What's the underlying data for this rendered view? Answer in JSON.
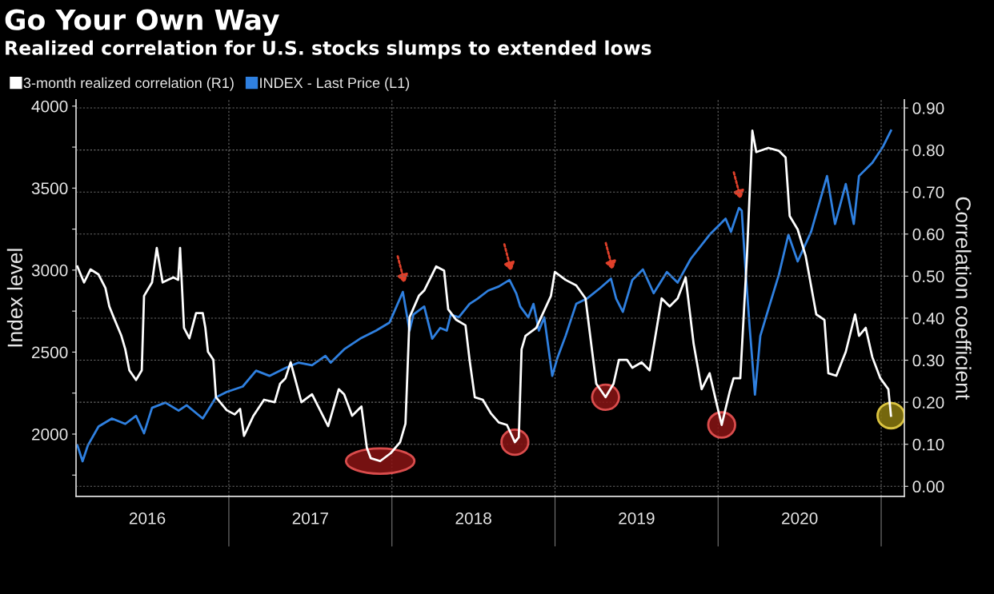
{
  "chart_data": {
    "type": "line",
    "title": "Go Your Own Way",
    "subtitle": "Realized correlation for U.S. stocks slumps to extended lows",
    "ylabel": "Index level",
    "y2label": "Correlation coefficient",
    "legend": "top left",
    "grid": true,
    "line_style": "solid",
    "marker": "none",
    "xlim": [
      2016.063,
      2021.142
    ],
    "xticks": [
      {
        "value": 2017,
        "label": null
      },
      {
        "value": 2018,
        "label": null
      },
      {
        "value": 2019,
        "label": null
      },
      {
        "value": 2020,
        "label": null
      },
      {
        "value": 2021,
        "label": null
      },
      {
        "value": 2016.5,
        "label": "2016"
      },
      {
        "value": 2017.5,
        "label": "2017"
      },
      {
        "value": 2018.5,
        "label": "2018"
      },
      {
        "value": 2019.5,
        "label": "2019"
      },
      {
        "value": 2020.5,
        "label": "2020"
      }
    ],
    "ylim": [
      1620,
      4040
    ],
    "yticks": [
      {
        "value": 1750,
        "label": null
      },
      2000,
      {
        "value": 2250,
        "label": null
      },
      2500,
      {
        "value": 2750,
        "label": null
      },
      3000,
      {
        "value": 3250,
        "label": null
      },
      3500,
      {
        "value": 3750,
        "label": null
      },
      4000
    ],
    "y2lim": [
      -0.024,
      0.92
    ],
    "y2ticks": [
      {
        "value": 0,
        "label": "0.00"
      },
      {
        "value": 0.1,
        "label": "0.10"
      },
      {
        "value": 0.2,
        "label": "0.20"
      },
      {
        "value": 0.3,
        "label": "0.30"
      },
      {
        "value": 0.4,
        "label": "0.40"
      },
      {
        "value": 0.5,
        "label": "0.50"
      },
      {
        "value": 0.6,
        "label": "0.60"
      },
      {
        "value": 0.7,
        "label": "0.70"
      },
      {
        "value": 0.8,
        "label": "0.80"
      },
      {
        "value": 0.9,
        "label": "0.90"
      }
    ],
    "series": [
      {
        "name": "3-month realized correlation (R1)",
        "color": "#ffffff",
        "axis": "y2",
        "x": [
          2016.071,
          2016.112,
          2016.152,
          2016.201,
          2016.243,
          2016.267,
          2016.3,
          2016.341,
          2016.365,
          2016.39,
          2016.431,
          2016.466,
          2016.48,
          2016.529,
          2016.558,
          2016.594,
          2016.627,
          2016.66,
          2016.689,
          2016.701,
          2016.725,
          2016.758,
          2016.799,
          2016.84,
          2016.856,
          2016.872,
          2016.905,
          2016.921,
          2016.987,
          2017.036,
          2017.069,
          2017.093,
          2017.151,
          2017.216,
          2017.281,
          2017.314,
          2017.347,
          2017.379,
          2017.445,
          2017.51,
          2017.609,
          2017.674,
          2017.707,
          2017.756,
          2017.813,
          2017.846,
          2017.87,
          2017.928,
          2017.993,
          2018.05,
          2018.083,
          2018.108,
          2018.165,
          2018.198,
          2018.271,
          2018.32,
          2018.345,
          2018.394,
          2018.451,
          2018.476,
          2018.508,
          2018.557,
          2018.606,
          2018.655,
          2018.705,
          2018.754,
          2018.778,
          2018.795,
          2018.819,
          2018.885,
          2018.975,
          2018.999,
          2019.065,
          2019.13,
          2019.187,
          2019.228,
          2019.253,
          2019.31,
          2019.359,
          2019.392,
          2019.441,
          2019.474,
          2019.531,
          2019.58,
          2019.605,
          2019.654,
          2019.703,
          2019.752,
          2019.801,
          2019.85,
          2019.899,
          2019.948,
          2019.989,
          2020.022,
          2020.071,
          2020.095,
          2020.136,
          2020.177,
          2020.21,
          2020.234,
          2020.308,
          2020.373,
          2020.414,
          2020.439,
          2020.488,
          2020.537,
          2020.602,
          2020.652,
          2020.676,
          2020.725,
          2020.783,
          2020.84,
          2020.864,
          2020.905,
          2020.946,
          2020.995,
          2021.044,
          2021.06
        ],
        "values": [
          0.523,
          0.485,
          0.516,
          0.504,
          0.472,
          0.428,
          0.396,
          0.358,
          0.326,
          0.276,
          0.253,
          0.276,
          0.453,
          0.485,
          0.567,
          0.485,
          0.491,
          0.497,
          0.491,
          0.567,
          0.377,
          0.352,
          0.412,
          0.412,
          0.377,
          0.32,
          0.301,
          0.212,
          0.181,
          0.171,
          0.184,
          0.12,
          0.168,
          0.206,
          0.2,
          0.244,
          0.257,
          0.295,
          0.2,
          0.219,
          0.143,
          0.231,
          0.219,
          0.168,
          0.19,
          0.092,
          0.067,
          0.06,
          0.079,
          0.105,
          0.149,
          0.402,
          0.453,
          0.466,
          0.523,
          0.513,
          0.421,
          0.396,
          0.383,
          0.301,
          0.212,
          0.206,
          0.174,
          0.152,
          0.146,
          0.105,
          0.117,
          0.326,
          0.358,
          0.377,
          0.453,
          0.51,
          0.491,
          0.478,
          0.447,
          0.32,
          0.244,
          0.212,
          0.244,
          0.301,
          0.301,
          0.282,
          0.295,
          0.276,
          0.333,
          0.447,
          0.428,
          0.447,
          0.497,
          0.339,
          0.231,
          0.269,
          0.2,
          0.146,
          0.225,
          0.257,
          0.257,
          0.548,
          0.846,
          0.795,
          0.805,
          0.798,
          0.782,
          0.643,
          0.611,
          0.548,
          0.409,
          0.396,
          0.269,
          0.263,
          0.32,
          0.409,
          0.358,
          0.377,
          0.307,
          0.257,
          0.231,
          0.168
        ]
      },
      {
        "name": "INDEX - Last Price (L1)",
        "color": "#2f80e0",
        "x": [
          2016.071,
          2016.103,
          2016.136,
          2016.201,
          2016.283,
          2016.365,
          2016.431,
          2016.48,
          2016.529,
          2016.611,
          2016.692,
          2016.741,
          2016.84,
          2016.921,
          2016.987,
          2017.085,
          2017.167,
          2017.249,
          2017.347,
          2017.428,
          2017.51,
          2017.592,
          2017.625,
          2017.707,
          2017.805,
          2017.903,
          2017.985,
          2018.067,
          2018.108,
          2018.132,
          2018.198,
          2018.247,
          2018.296,
          2018.336,
          2018.361,
          2018.41,
          2018.476,
          2018.525,
          2018.59,
          2018.655,
          2018.721,
          2018.762,
          2018.787,
          2018.836,
          2018.868,
          2018.901,
          2018.934,
          2018.983,
          2019.016,
          2019.065,
          2019.13,
          2019.195,
          2019.277,
          2019.343,
          2019.375,
          2019.416,
          2019.474,
          2019.539,
          2019.605,
          2019.686,
          2019.752,
          2019.833,
          2019.948,
          2020.046,
          2020.079,
          2020.128,
          2020.145,
          2020.169,
          2020.194,
          2020.226,
          2020.259,
          2020.308,
          2020.373,
          2020.431,
          2020.488,
          2020.57,
          2020.668,
          2020.717,
          2020.783,
          2020.832,
          2020.864,
          2020.946,
          2021.011,
          2021.06
        ],
        "values": [
          1932,
          1834,
          1932,
          2046,
          2095,
          2062,
          2111,
          2005,
          2160,
          2192,
          2143,
          2176,
          2095,
          2224,
          2257,
          2290,
          2387,
          2355,
          2403,
          2436,
          2420,
          2477,
          2436,
          2517,
          2582,
          2631,
          2680,
          2867,
          2631,
          2729,
          2778,
          2582,
          2647,
          2631,
          2729,
          2712,
          2794,
          2826,
          2875,
          2900,
          2940,
          2859,
          2778,
          2712,
          2794,
          2631,
          2712,
          2355,
          2468,
          2599,
          2794,
          2826,
          2891,
          2948,
          2826,
          2745,
          2940,
          3004,
          2859,
          2988,
          2924,
          3070,
          3216,
          3314,
          3233,
          3379,
          3363,
          2988,
          2647,
          2241,
          2599,
          2761,
          2973,
          3216,
          3053,
          3233,
          3574,
          3281,
          3525,
          3281,
          3574,
          3655,
          3753,
          3851
        ]
      }
    ]
  }
}
